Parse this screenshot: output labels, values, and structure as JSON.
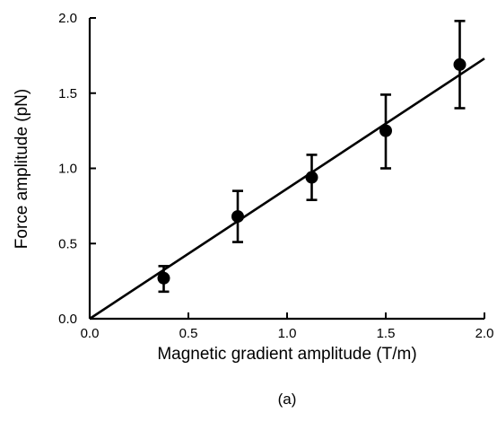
{
  "chart_data": {
    "type": "scatter",
    "xlabel": "Magnetic gradient amplitude (T/m)",
    "ylabel": "Force amplitude (pN)",
    "caption": "(a)",
    "xlim": [
      0.0,
      2.0
    ],
    "ylim": [
      0.0,
      2.0
    ],
    "x_ticks": [
      "0.0",
      "0.5",
      "1.0",
      "1.5",
      "2.0"
    ],
    "y_ticks": [
      "0.0",
      "0.5",
      "1.0",
      "1.5",
      "2.0"
    ],
    "grid": false,
    "series": [
      {
        "points": [
          {
            "x": 0.375,
            "y": 0.27,
            "err_low": 0.18,
            "err_high": 0.35
          },
          {
            "x": 0.75,
            "y": 0.68,
            "err_low": 0.51,
            "err_high": 0.85
          },
          {
            "x": 1.125,
            "y": 0.94,
            "err_low": 0.79,
            "err_high": 1.09
          },
          {
            "x": 1.5,
            "y": 1.25,
            "err_low": 1.0,
            "err_high": 1.49
          },
          {
            "x": 1.875,
            "y": 1.69,
            "err_low": 1.4,
            "err_high": 1.98
          }
        ]
      }
    ],
    "fit_line": {
      "slope": 0.865,
      "intercept": 0.0
    }
  }
}
